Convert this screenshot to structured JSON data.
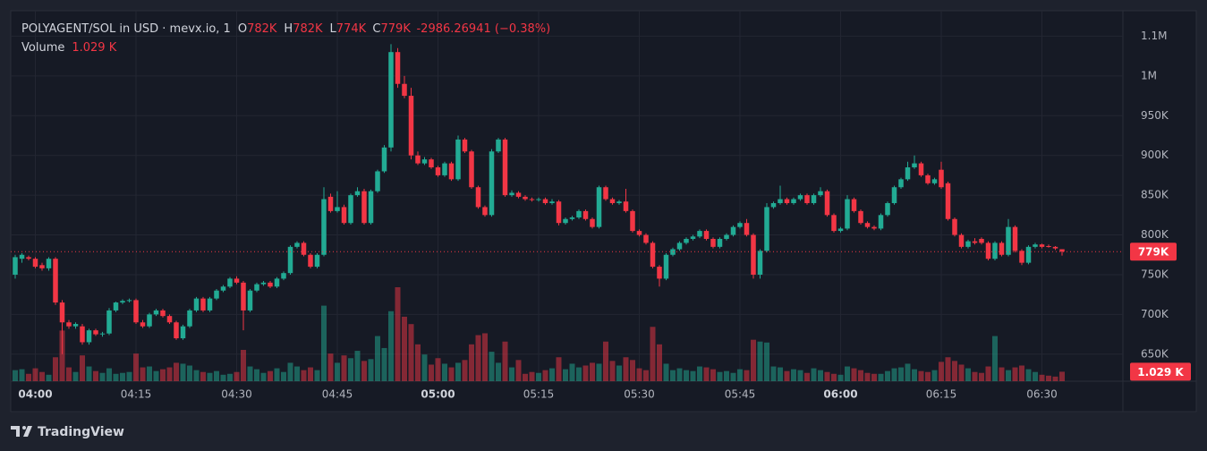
{
  "header": {
    "symbol": "POLYAGENT/SOL in USD · mevx.io, 1",
    "items": [
      {
        "key": "O",
        "value": "782K"
      },
      {
        "key": "H",
        "value": "782K"
      },
      {
        "key": "L",
        "value": "774K"
      },
      {
        "key": "C",
        "value": "779K"
      }
    ],
    "change": "-2986.26941 (−0.38%)",
    "volume_title": "Volume"
  },
  "footer": {
    "brand": "TradingView"
  },
  "chart_data": {
    "type": "candlestick",
    "up_color": "#22ab94",
    "down_color": "#f23645",
    "grid": true,
    "ylim": [
      616,
      1082
    ],
    "yticks": [
      {
        "value": 650,
        "label": "650K"
      },
      {
        "value": 700,
        "label": "700K"
      },
      {
        "value": 750,
        "label": "750K"
      },
      {
        "value": 800,
        "label": "800K"
      },
      {
        "value": 850,
        "label": "850K"
      },
      {
        "value": 900,
        "label": "900K"
      },
      {
        "value": 950,
        "label": "950K"
      },
      {
        "value": 1000,
        "label": "1M"
      },
      {
        "value": 1050,
        "label": "1.1M"
      }
    ],
    "xticks": [
      "04:00",
      "04:15",
      "04:30",
      "04:45",
      "05:00",
      "05:15",
      "05:30",
      "05:45",
      "06:00",
      "06:15",
      "06:30"
    ],
    "last_price": {
      "value": 779,
      "label": "779K"
    },
    "last_volume": {
      "value": 1.029,
      "label": "1.029 K"
    },
    "categories": [
      "03:57",
      "03:58",
      "03:59",
      "04:00",
      "04:01",
      "04:02",
      "04:03",
      "04:04",
      "04:05",
      "04:06",
      "04:07",
      "04:08",
      "04:09",
      "04:10",
      "04:11",
      "04:12",
      "04:13",
      "04:14",
      "04:15",
      "04:16",
      "04:17",
      "04:18",
      "04:19",
      "04:20",
      "04:21",
      "04:22",
      "04:23",
      "04:24",
      "04:25",
      "04:26",
      "04:27",
      "04:28",
      "04:29",
      "04:30",
      "04:31",
      "04:32",
      "04:33",
      "04:34",
      "04:35",
      "04:36",
      "04:37",
      "04:38",
      "04:39",
      "04:40",
      "04:41",
      "04:42",
      "04:43",
      "04:44",
      "04:45",
      "04:46",
      "04:47",
      "04:48",
      "04:49",
      "04:50",
      "04:51",
      "04:52",
      "04:53",
      "04:54",
      "04:55",
      "04:56",
      "04:57",
      "04:58",
      "04:59",
      "05:00",
      "05:01",
      "05:02",
      "05:03",
      "05:04",
      "05:05",
      "05:06",
      "05:07",
      "05:08",
      "05:09",
      "05:10",
      "05:11",
      "05:12",
      "05:13",
      "05:14",
      "05:15",
      "05:16",
      "05:17",
      "05:18",
      "05:19",
      "05:20",
      "05:21",
      "05:22",
      "05:23",
      "05:24",
      "05:25",
      "05:26",
      "05:27",
      "05:28",
      "05:29",
      "05:30",
      "05:31",
      "05:32",
      "05:33",
      "05:34",
      "05:35",
      "05:36",
      "05:37",
      "05:38",
      "05:39",
      "05:40",
      "05:41",
      "05:42",
      "05:43",
      "05:44",
      "05:45",
      "05:46",
      "05:47",
      "05:48",
      "05:49",
      "05:50",
      "05:51",
      "05:52",
      "05:53",
      "05:54",
      "05:55",
      "05:56",
      "05:57",
      "05:58",
      "05:59",
      "06:00",
      "06:01",
      "06:02",
      "06:03",
      "06:04",
      "06:05",
      "06:06",
      "06:07",
      "06:08",
      "06:09",
      "06:10",
      "06:11",
      "06:12",
      "06:13",
      "06:14",
      "06:15",
      "06:16",
      "06:17",
      "06:18",
      "06:19",
      "06:20",
      "06:21",
      "06:22",
      "06:23",
      "06:24",
      "06:25",
      "06:26",
      "06:27",
      "06:28",
      "06:29",
      "06:30",
      "06:31",
      "06:32",
      "06:33"
    ],
    "ohlc": [
      [
        750,
        775,
        745,
        772
      ],
      [
        770,
        777,
        765,
        775
      ],
      [
        772,
        774,
        768,
        770
      ],
      [
        770,
        772,
        758,
        760
      ],
      [
        762,
        765,
        755,
        758
      ],
      [
        758,
        772,
        755,
        770
      ],
      [
        770,
        772,
        712,
        715
      ],
      [
        715,
        718,
        650,
        690
      ],
      [
        690,
        693,
        682,
        685
      ],
      [
        685,
        690,
        682,
        688
      ],
      [
        685,
        688,
        662,
        665
      ],
      [
        665,
        682,
        662,
        680
      ],
      [
        680,
        682,
        673,
        675
      ],
      [
        675,
        678,
        672,
        676
      ],
      [
        676,
        708,
        674,
        705
      ],
      [
        705,
        716,
        703,
        715
      ],
      [
        715,
        719,
        713,
        717
      ],
      [
        717,
        720,
        715,
        718
      ],
      [
        718,
        720,
        688,
        690
      ],
      [
        690,
        693,
        683,
        685
      ],
      [
        685,
        702,
        683,
        700
      ],
      [
        700,
        707,
        698,
        705
      ],
      [
        705,
        707,
        696,
        698
      ],
      [
        698,
        700,
        688,
        690
      ],
      [
        690,
        692,
        668,
        670
      ],
      [
        670,
        687,
        668,
        685
      ],
      [
        685,
        707,
        683,
        705
      ],
      [
        705,
        722,
        703,
        720
      ],
      [
        720,
        722,
        703,
        705
      ],
      [
        705,
        722,
        703,
        720
      ],
      [
        720,
        732,
        718,
        730
      ],
      [
        730,
        737,
        728,
        735
      ],
      [
        735,
        747,
        733,
        745
      ],
      [
        745,
        748,
        738,
        740
      ],
      [
        740,
        742,
        680,
        705
      ],
      [
        705,
        732,
        703,
        730
      ],
      [
        730,
        740,
        728,
        738
      ],
      [
        738,
        742,
        736,
        740
      ],
      [
        740,
        742,
        733,
        735
      ],
      [
        735,
        747,
        733,
        745
      ],
      [
        745,
        754,
        743,
        752
      ],
      [
        752,
        787,
        750,
        785
      ],
      [
        785,
        792,
        783,
        790
      ],
      [
        790,
        792,
        773,
        775
      ],
      [
        775,
        777,
        758,
        760
      ],
      [
        760,
        777,
        758,
        775
      ],
      [
        775,
        860,
        773,
        845
      ],
      [
        848,
        852,
        828,
        830
      ],
      [
        830,
        855,
        828,
        835
      ],
      [
        835,
        838,
        813,
        815
      ],
      [
        815,
        852,
        813,
        850
      ],
      [
        850,
        860,
        848,
        855
      ],
      [
        855,
        858,
        813,
        815
      ],
      [
        815,
        857,
        813,
        855
      ],
      [
        855,
        882,
        853,
        880
      ],
      [
        880,
        913,
        878,
        910
      ],
      [
        910,
        1040,
        905,
        1030
      ],
      [
        1030,
        1035,
        985,
        990
      ],
      [
        990,
        1000,
        972,
        975
      ],
      [
        975,
        985,
        895,
        900
      ],
      [
        900,
        905,
        888,
        890
      ],
      [
        890,
        898,
        888,
        895
      ],
      [
        895,
        897,
        883,
        885
      ],
      [
        885,
        887,
        873,
        875
      ],
      [
        875,
        892,
        873,
        890
      ],
      [
        890,
        892,
        868,
        870
      ],
      [
        870,
        925,
        868,
        920
      ],
      [
        920,
        922,
        903,
        905
      ],
      [
        905,
        907,
        858,
        860
      ],
      [
        860,
        862,
        833,
        835
      ],
      [
        835,
        837,
        823,
        825
      ],
      [
        825,
        908,
        823,
        905
      ],
      [
        905,
        922,
        903,
        920
      ],
      [
        920,
        922,
        848,
        850
      ],
      [
        850,
        856,
        848,
        853
      ],
      [
        853,
        855,
        846,
        848
      ],
      [
        848,
        850,
        843,
        845
      ],
      [
        845,
        847,
        842,
        844
      ],
      [
        844,
        847,
        842,
        845
      ],
      [
        845,
        847,
        838,
        840
      ],
      [
        840,
        845,
        838,
        842
      ],
      [
        842,
        844,
        812,
        815
      ],
      [
        815,
        822,
        813,
        820
      ],
      [
        820,
        824,
        818,
        822
      ],
      [
        822,
        832,
        820,
        830
      ],
      [
        830,
        832,
        818,
        820
      ],
      [
        820,
        822,
        808,
        810
      ],
      [
        810,
        862,
        808,
        860
      ],
      [
        860,
        862,
        843,
        845
      ],
      [
        845,
        847,
        838,
        840
      ],
      [
        840,
        844,
        838,
        842
      ],
      [
        842,
        858,
        828,
        830
      ],
      [
        830,
        832,
        803,
        805
      ],
      [
        805,
        807,
        798,
        800
      ],
      [
        800,
        802,
        788,
        790
      ],
      [
        790,
        792,
        758,
        760
      ],
      [
        760,
        762,
        735,
        745
      ],
      [
        745,
        777,
        743,
        775
      ],
      [
        775,
        784,
        773,
        782
      ],
      [
        782,
        792,
        780,
        790
      ],
      [
        790,
        797,
        788,
        795
      ],
      [
        795,
        800,
        793,
        798
      ],
      [
        798,
        807,
        796,
        805
      ],
      [
        805,
        807,
        793,
        795
      ],
      [
        795,
        797,
        783,
        785
      ],
      [
        785,
        797,
        783,
        795
      ],
      [
        795,
        802,
        793,
        800
      ],
      [
        800,
        812,
        798,
        810
      ],
      [
        810,
        817,
        808,
        815
      ],
      [
        815,
        820,
        798,
        800
      ],
      [
        800,
        802,
        745,
        750
      ],
      [
        750,
        782,
        745,
        780
      ],
      [
        780,
        840,
        778,
        835
      ],
      [
        835,
        842,
        833,
        840
      ],
      [
        840,
        862,
        838,
        845
      ],
      [
        845,
        847,
        838,
        840
      ],
      [
        840,
        847,
        838,
        845
      ],
      [
        845,
        852,
        843,
        850
      ],
      [
        850,
        852,
        838,
        840
      ],
      [
        840,
        852,
        838,
        850
      ],
      [
        850,
        860,
        848,
        855
      ],
      [
        855,
        857,
        823,
        825
      ],
      [
        825,
        827,
        803,
        805
      ],
      [
        805,
        810,
        803,
        808
      ],
      [
        808,
        850,
        806,
        845
      ],
      [
        845,
        847,
        828,
        830
      ],
      [
        830,
        832,
        813,
        815
      ],
      [
        815,
        817,
        808,
        810
      ],
      [
        810,
        812,
        806,
        808
      ],
      [
        808,
        827,
        806,
        825
      ],
      [
        825,
        842,
        823,
        840
      ],
      [
        840,
        862,
        838,
        860
      ],
      [
        860,
        872,
        858,
        870
      ],
      [
        870,
        892,
        868,
        885
      ],
      [
        885,
        900,
        883,
        890
      ],
      [
        890,
        892,
        873,
        875
      ],
      [
        875,
        877,
        863,
        865
      ],
      [
        865,
        872,
        863,
        870
      ],
      [
        882,
        892,
        858,
        860
      ],
      [
        865,
        867,
        818,
        820
      ],
      [
        820,
        822,
        798,
        800
      ],
      [
        800,
        802,
        783,
        785
      ],
      [
        785,
        794,
        783,
        792
      ],
      [
        792,
        796,
        788,
        790
      ],
      [
        795,
        797,
        788,
        790
      ],
      [
        790,
        792,
        768,
        770
      ],
      [
        770,
        792,
        768,
        790
      ],
      [
        790,
        792,
        773,
        775
      ],
      [
        775,
        820,
        773,
        810
      ],
      [
        810,
        812,
        778,
        780
      ],
      [
        780,
        782,
        762,
        765
      ],
      [
        765,
        787,
        763,
        785
      ],
      [
        785,
        790,
        783,
        788
      ],
      [
        788,
        789,
        783,
        785
      ],
      [
        786,
        788,
        784,
        785
      ],
      [
        785,
        786,
        781,
        783
      ],
      [
        782,
        782,
        774,
        779
      ]
    ],
    "volume": [
      1.2,
      1.3,
      0.8,
      1.4,
      1.0,
      0.7,
      2.6,
      5.5,
      1.5,
      1.0,
      2.8,
      1.6,
      1.1,
      0.9,
      1.4,
      0.8,
      0.9,
      1.0,
      3.0,
      1.5,
      1.6,
      1.1,
      1.3,
      1.5,
      2.0,
      1.9,
      1.7,
      1.2,
      1.0,
      0.9,
      1.1,
      0.7,
      0.8,
      1.0,
      3.4,
      1.6,
      1.3,
      0.9,
      1.1,
      1.4,
      1.0,
      2.0,
      1.6,
      1.2,
      1.5,
      1.2,
      8.2,
      3.0,
      2.0,
      2.8,
      2.5,
      3.3,
      2.2,
      2.4,
      4.9,
      3.6,
      7.6,
      10.2,
      7.0,
      6.2,
      4.0,
      2.9,
      1.8,
      2.5,
      1.9,
      1.5,
      2.0,
      2.3,
      4.0,
      5.0,
      5.2,
      3.2,
      2.0,
      4.3,
      1.5,
      2.3,
      0.8,
      1.0,
      0.9,
      1.2,
      1.4,
      2.6,
      1.3,
      1.9,
      1.5,
      1.7,
      2.0,
      1.9,
      4.3,
      2.2,
      1.7,
      2.6,
      2.3,
      1.4,
      1.2,
      5.9,
      4.0,
      1.9,
      1.2,
      1.4,
      1.2,
      1.1,
      1.6,
      1.5,
      1.3,
      1.0,
      1.1,
      0.9,
      1.3,
      1.2,
      4.5,
      4.3,
      4.2,
      1.6,
      1.5,
      1.1,
      1.3,
      1.2,
      0.9,
      1.4,
      1.2,
      1.0,
      0.8,
      0.7,
      1.6,
      1.4,
      1.2,
      0.9,
      0.8,
      0.8,
      1.1,
      1.4,
      1.5,
      1.9,
      1.3,
      1.1,
      1.0,
      1.2,
      2.1,
      2.6,
      2.2,
      1.8,
      1.4,
      1.0,
      0.9,
      1.6,
      4.9,
      1.5,
      1.2,
      1.5,
      1.7,
      1.3,
      1.0,
      0.7,
      0.6,
      0.5,
      1.029
    ]
  }
}
